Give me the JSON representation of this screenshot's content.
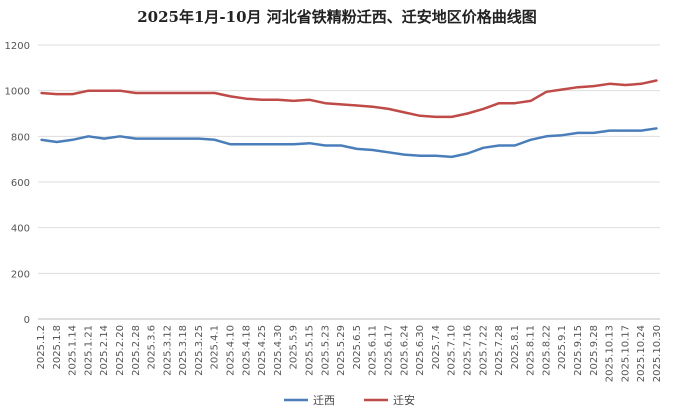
{
  "chart_data": {
    "type": "line",
    "title": "2025年1月-10月 河北省铁精粉迁西、迁安地区价格曲线图",
    "xlabel": "",
    "ylabel": "",
    "ylim": [
      0,
      1200
    ],
    "yticks": [
      0,
      200,
      400,
      600,
      800,
      1000,
      1200
    ],
    "grid": true,
    "legend_position": "bottom",
    "categories": [
      "2025.1.2",
      "2025.1.8",
      "2025.1.14",
      "2025.1.21",
      "2025.2.14",
      "2025.2.20",
      "2025.2.28",
      "2025.3.6",
      "2025.3.12",
      "2025.3.18",
      "2025.3.25",
      "2025.4.1",
      "2025.4.10",
      "2025.4.18",
      "2025.4.25",
      "2025.4.30",
      "2025.5.9",
      "2025.5.15",
      "2025.5.23",
      "2025.5.29",
      "2025.6.5",
      "2025.6.11",
      "2025.6.17",
      "2025.6.24",
      "2025.6.30",
      "2025.7.4",
      "2025.7.10",
      "2025.7.16",
      "2025.7.22",
      "2025.7.28",
      "2025.8.1",
      "2025.8.11",
      "2025.8.22",
      "2025.9.1",
      "2025.9.15",
      "2025.9.28",
      "2025.10.13",
      "2025.10.17",
      "2025.10.24",
      "2025.10.30"
    ],
    "series": [
      {
        "name": "迁西",
        "color": "#4a7ebb",
        "values": [
          785,
          775,
          785,
          800,
          790,
          800,
          790,
          790,
          790,
          790,
          790,
          785,
          765,
          765,
          765,
          765,
          765,
          770,
          760,
          760,
          745,
          740,
          730,
          720,
          715,
          715,
          710,
          725,
          750,
          760,
          760,
          785,
          800,
          805,
          815,
          815,
          825,
          825,
          825,
          835
        ]
      },
      {
        "name": "迁安",
        "color": "#be4b48",
        "values": [
          990,
          985,
          985,
          1000,
          1000,
          1000,
          990,
          990,
          990,
          990,
          990,
          990,
          975,
          965,
          960,
          960,
          955,
          960,
          945,
          940,
          935,
          930,
          920,
          905,
          890,
          885,
          885,
          900,
          920,
          945,
          945,
          955,
          995,
          1005,
          1015,
          1020,
          1030,
          1025,
          1030,
          1045
        ]
      }
    ]
  }
}
